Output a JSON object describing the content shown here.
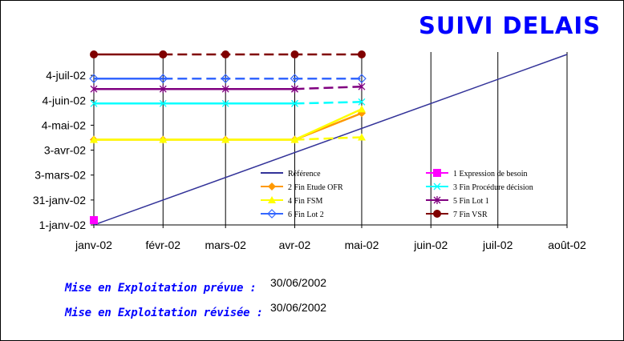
{
  "title": "SUIVI DELAIS",
  "footer": {
    "planned_label": "Mise en Exploitation prévue  :",
    "planned_value": "30/06/2002",
    "revised_label": "Mise en Exploitation révisée  :",
    "revised_value": "30/06/2002"
  },
  "chart_data": {
    "type": "line",
    "title": "SUIVI DELAIS",
    "xlabel": "",
    "ylabel": "",
    "x_ticks": [
      "janv-02",
      "févr-02",
      "mars-02",
      "avr-02",
      "mai-02",
      "juin-02",
      "juil-02",
      "août-02"
    ],
    "y_ticks": [
      "1-janv-02",
      "31-janv-02",
      "3-mars-02",
      "3-avr-02",
      "4-mai-02",
      "4-juin-02",
      "4-juil-02"
    ],
    "xlim": [
      "2002-01-01",
      "2002-08-01"
    ],
    "ylim": [
      "2002-01-01",
      "2002-08-04"
    ],
    "vertical_gridlines": true,
    "legend_position": "bottom-right",
    "series": [
      {
        "name": "Référence",
        "color": "#333399",
        "marker": "none",
        "solid": [
          [
            "2002-01-01",
            "2002-01-01"
          ],
          [
            "2002-08-01",
            "2002-08-01"
          ]
        ],
        "dashed": []
      },
      {
        "name": "1 Expression de besoin",
        "color": "#ff00ff",
        "marker": "square",
        "solid": [
          [
            "2002-01-01",
            "2002-01-07"
          ]
        ],
        "dashed": []
      },
      {
        "name": "2 Fin Etude OFR",
        "color": "#ff9900",
        "marker": "diamond",
        "solid": [
          [
            "2002-01-01",
            "2002-04-17"
          ],
          [
            "2002-02-01",
            "2002-04-17"
          ],
          [
            "2002-03-01",
            "2002-04-17"
          ],
          [
            "2002-04-01",
            "2002-04-17"
          ],
          [
            "2002-05-01",
            "2002-05-20"
          ]
        ],
        "dashed": []
      },
      {
        "name": "3 Fin Procédure décision",
        "color": "#00ffff",
        "marker": "x",
        "solid": [
          [
            "2002-01-01",
            "2002-06-01"
          ],
          [
            "2002-02-01",
            "2002-06-01"
          ],
          [
            "2002-03-01",
            "2002-06-01"
          ],
          [
            "2002-04-01",
            "2002-06-01"
          ]
        ],
        "dashed": [
          [
            "2002-04-01",
            "2002-06-01"
          ],
          [
            "2002-05-01",
            "2002-06-03"
          ]
        ]
      },
      {
        "name": "4 Fin FSM",
        "color": "#ffff00",
        "marker": "triangle",
        "solid": [
          [
            "2002-01-01",
            "2002-04-17"
          ],
          [
            "2002-02-01",
            "2002-04-17"
          ],
          [
            "2002-03-01",
            "2002-04-17"
          ],
          [
            "2002-04-01",
            "2002-04-17"
          ],
          [
            "2002-05-01",
            "2002-05-25"
          ]
        ],
        "dashed": [
          [
            "2002-04-01",
            "2002-04-17"
          ],
          [
            "2002-05-01",
            "2002-04-20"
          ]
        ]
      },
      {
        "name": "5 Fin Lot 1",
        "color": "#800080",
        "marker": "star",
        "solid": [
          [
            "2002-01-01",
            "2002-06-19"
          ],
          [
            "2002-02-01",
            "2002-06-19"
          ],
          [
            "2002-03-01",
            "2002-06-19"
          ],
          [
            "2002-04-01",
            "2002-06-19"
          ]
        ],
        "dashed": [
          [
            "2002-04-01",
            "2002-06-19"
          ],
          [
            "2002-05-01",
            "2002-06-22"
          ]
        ]
      },
      {
        "name": "6 Fin Lot 2",
        "color": "#3366ff",
        "marker": "diamond-open",
        "solid": [
          [
            "2002-01-01",
            "2002-07-02"
          ],
          [
            "2002-02-01",
            "2002-07-02"
          ]
        ],
        "dashed": [
          [
            "2002-02-01",
            "2002-07-02"
          ],
          [
            "2002-03-01",
            "2002-07-02"
          ],
          [
            "2002-04-01",
            "2002-07-02"
          ],
          [
            "2002-05-01",
            "2002-07-02"
          ]
        ]
      },
      {
        "name": "7 Fin VSR",
        "color": "#800000",
        "marker": "circle",
        "solid": [
          [
            "2002-01-01",
            "2002-08-01"
          ],
          [
            "2002-02-01",
            "2002-08-01"
          ]
        ],
        "dashed": [
          [
            "2002-02-01",
            "2002-08-01"
          ],
          [
            "2002-03-01",
            "2002-08-01"
          ],
          [
            "2002-04-01",
            "2002-08-01"
          ],
          [
            "2002-05-01",
            "2002-08-01"
          ]
        ]
      }
    ]
  }
}
